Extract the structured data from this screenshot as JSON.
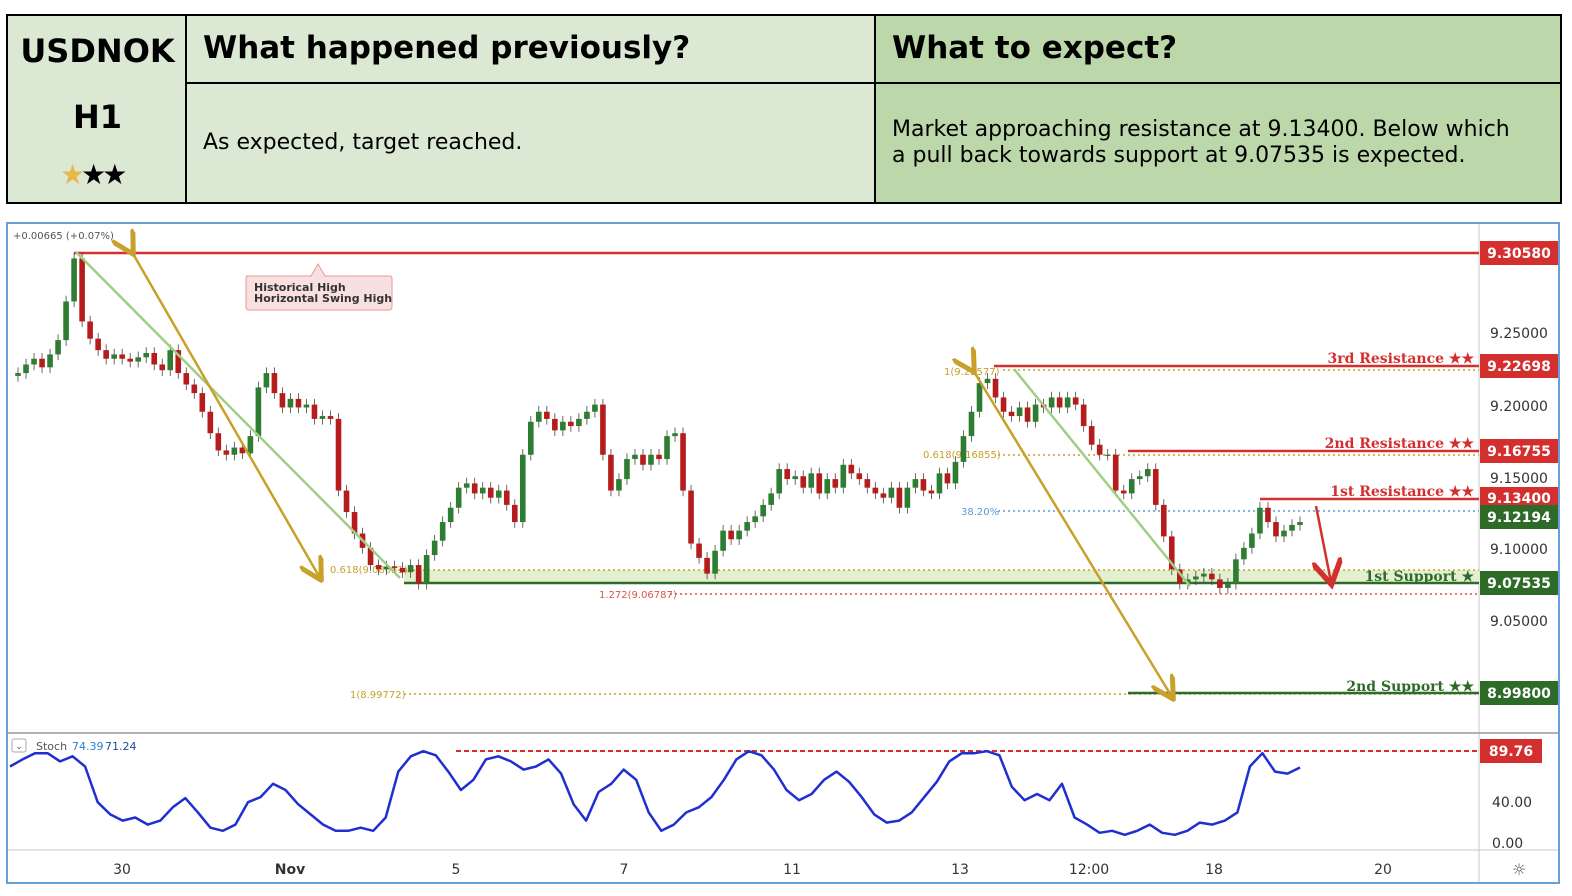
{
  "header": {
    "symbol": "USDNOK",
    "timeframe": "H1",
    "rating_stars": [
      true,
      false,
      false
    ],
    "previous_title": "What happened previously?",
    "expect_title": "What to expect?",
    "previous_text": "As expected, target reached.",
    "expect_text_line1": "Market approaching resistance at 9.13400. Below which",
    "expect_text_line2": "a pull back towards support at 9.07535 is expected.",
    "colors": {
      "left_bg": "#dbe9d4",
      "right_bg": "#bcd8aa"
    }
  },
  "chart_data": {
    "type": "line",
    "instrument": "USDNOK",
    "interval": "H1",
    "change_label": "+0.00665 (+0.07%)",
    "x_tick_labels": [
      "30",
      "Nov",
      "5",
      "7",
      "11",
      "13",
      "12:00",
      "18",
      "20"
    ],
    "y_tick_labels": [
      "9.25000",
      "9.20000",
      "9.15000",
      "9.10000",
      "9.05000"
    ],
    "ylim": [
      8.975,
      9.315
    ],
    "price_path": [
      9.22,
      9.222,
      9.228,
      9.232,
      9.226,
      9.235,
      9.245,
      9.272,
      9.302,
      9.258,
      9.246,
      9.238,
      9.232,
      9.235,
      9.232,
      9.23,
      9.233,
      9.236,
      9.228,
      9.224,
      9.238,
      9.222,
      9.214,
      9.208,
      9.195,
      9.18,
      9.168,
      9.165,
      9.17,
      9.166,
      9.178,
      9.212,
      9.222,
      9.208,
      9.198,
      9.204,
      9.198,
      9.2,
      9.19,
      9.192,
      9.19,
      9.14,
      9.125,
      9.11,
      9.1,
      9.088,
      9.085,
      9.087,
      9.086,
      9.083,
      9.088,
      9.075,
      9.095,
      9.105,
      9.118,
      9.128,
      9.142,
      9.145,
      9.138,
      9.142,
      9.135,
      9.14,
      9.13,
      9.118,
      9.165,
      9.188,
      9.195,
      9.19,
      9.182,
      9.188,
      9.185,
      9.19,
      9.195,
      9.2,
      9.165,
      9.14,
      9.148,
      9.162,
      9.165,
      9.158,
      9.165,
      9.162,
      9.178,
      9.18,
      9.14,
      9.103,
      9.093,
      9.082,
      9.098,
      9.112,
      9.106,
      9.112,
      9.118,
      9.122,
      9.13,
      9.138,
      9.155,
      9.148,
      9.15,
      9.142,
      9.152,
      9.138,
      9.148,
      9.142,
      9.158,
      9.152,
      9.148,
      9.142,
      9.138,
      9.135,
      9.142,
      9.128,
      9.142,
      9.148,
      9.14,
      9.138,
      9.152,
      9.145,
      9.16,
      9.178,
      9.195,
      9.215,
      9.218,
      9.205,
      9.195,
      9.192,
      9.198,
      9.188,
      9.2,
      9.198,
      9.205,
      9.198,
      9.205,
      9.2,
      9.185,
      9.172,
      9.165,
      9.165,
      9.14,
      9.138,
      9.148,
      9.15,
      9.155,
      9.13,
      9.108,
      9.085,
      9.075,
      9.078,
      9.08,
      9.082,
      9.078,
      9.072,
      9.075,
      9.092,
      9.1,
      9.11,
      9.128,
      9.118,
      9.108,
      9.112,
      9.116,
      9.118
    ],
    "stochastic": {
      "label": "Stoch",
      "k_value": "74.39",
      "d_value": "71.24",
      "y_tick_labels": [
        "40.00",
        "0.00"
      ],
      "ylim": [
        0,
        100
      ],
      "overbought_level": 89.76,
      "overbought_label": "89.76",
      "values": [
        75,
        82,
        88,
        88,
        80,
        85,
        75,
        40,
        28,
        22,
        25,
        18,
        22,
        35,
        44,
        30,
        15,
        12,
        18,
        40,
        45,
        58,
        52,
        38,
        28,
        18,
        12,
        12,
        15,
        12,
        25,
        70,
        85,
        90,
        86,
        70,
        52,
        62,
        82,
        85,
        80,
        72,
        75,
        82,
        68,
        38,
        22,
        50,
        58,
        72,
        62,
        30,
        12,
        18,
        30,
        35,
        45,
        62,
        82,
        90,
        86,
        72,
        52,
        42,
        48,
        62,
        70,
        60,
        45,
        28,
        20,
        22,
        30,
        45,
        60,
        80,
        88,
        88,
        90,
        86,
        55,
        42,
        48,
        42,
        58,
        25,
        18,
        10,
        12,
        8,
        12,
        18,
        10,
        8,
        12,
        20,
        18,
        22,
        30,
        75,
        88,
        70,
        68,
        74
      ]
    },
    "price_labels": [
      {
        "value": 9.3058,
        "label": "9.30580",
        "color": "#d32f2f"
      },
      {
        "value": 9.22698,
        "label": "9.22698",
        "color": "#d32f2f"
      },
      {
        "value": 9.16755,
        "label": "9.16755",
        "color": "#d32f2f"
      },
      {
        "value": 9.134,
        "label": "9.13400",
        "color": "#d32f2f"
      },
      {
        "value": 9.12194,
        "label": "9.12194",
        "color": "#2e6b28"
      },
      {
        "value": 9.07535,
        "label": "9.07535",
        "color": "#2e6b28"
      },
      {
        "value": 8.998,
        "label": "8.99800",
        "color": "#2e6b28"
      }
    ],
    "levels": [
      {
        "name": "3rd Resistance ★★",
        "value": 9.22698,
        "color": "#d32f2f"
      },
      {
        "name": "2nd Resistance ★★",
        "value": 9.16755,
        "color": "#d32f2f"
      },
      {
        "name": "1st Resistance ★★",
        "value": 9.134,
        "color": "#d32f2f"
      },
      {
        "name": "1st Support ★",
        "value": 9.07535,
        "color": "#2e6b28"
      },
      {
        "name": "2nd Support ★★",
        "value": 8.998,
        "color": "#2e6b28"
      }
    ],
    "annotations": {
      "historical_high_line1": "Historical High",
      "historical_high_line2": "Horizontal Swing High",
      "fib_1_top": "1(9.22577)",
      "fib_0618_mid": "0.618(9.16855)",
      "fib_0618_left": "0.618(9.08051)",
      "fib_38": "38.20%",
      "fib_1272": "1.272(9.06787)",
      "fib_1_bottom": "1(8.99772)"
    }
  }
}
